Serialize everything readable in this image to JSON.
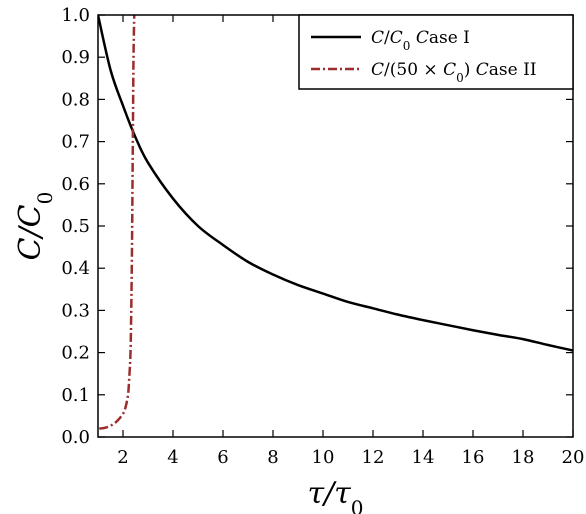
{
  "chart_data": {
    "type": "line",
    "title": "",
    "xlabel": "τ/τ0",
    "ylabel": "C/C0",
    "xlim": [
      1,
      20
    ],
    "ylim": [
      0.0,
      1.0
    ],
    "x_ticks": [
      2,
      4,
      6,
      8,
      10,
      12,
      14,
      16,
      18,
      20
    ],
    "x_tick_labels": [
      "2",
      "4",
      "6",
      "8",
      "10",
      "12",
      "14",
      "16",
      "18",
      "20"
    ],
    "y_ticks": [
      0.0,
      0.1,
      0.2,
      0.3,
      0.4,
      0.5,
      0.6,
      0.7,
      0.8,
      0.9,
      1.0
    ],
    "y_tick_labels": [
      "0.0",
      "0.1",
      "0.2",
      "0.3",
      "0.4",
      "0.5",
      "0.6",
      "0.7",
      "0.8",
      "0.9",
      "1.0"
    ],
    "grid": false,
    "legend_position": "top-right",
    "series": [
      {
        "name": "C/C0 Case I",
        "style": "solid",
        "color": "#000000",
        "x": [
          1,
          1.5,
          2,
          2.5,
          3,
          4,
          5,
          6,
          7,
          8,
          9,
          10,
          11,
          12,
          13,
          14,
          15,
          16,
          17,
          18,
          19,
          20
        ],
        "y": [
          1.0,
          0.87,
          0.785,
          0.71,
          0.65,
          0.565,
          0.5,
          0.455,
          0.415,
          0.385,
          0.36,
          0.34,
          0.32,
          0.305,
          0.29,
          0.277,
          0.265,
          0.253,
          0.242,
          0.232,
          0.218,
          0.205
        ]
      },
      {
        "name": "C/(50 × C0) Case II",
        "style": "dash-dot",
        "color": "#9b2d2d",
        "x": [
          1.05,
          1.3,
          1.6,
          1.8,
          2.0,
          2.1,
          2.2,
          2.25,
          2.3,
          2.33,
          2.36,
          2.38,
          2.4,
          2.42,
          2.45
        ],
        "y": [
          0.02,
          0.022,
          0.03,
          0.04,
          0.055,
          0.07,
          0.1,
          0.14,
          0.2,
          0.3,
          0.45,
          0.6,
          0.75,
          0.9,
          1.0
        ]
      }
    ]
  }
}
